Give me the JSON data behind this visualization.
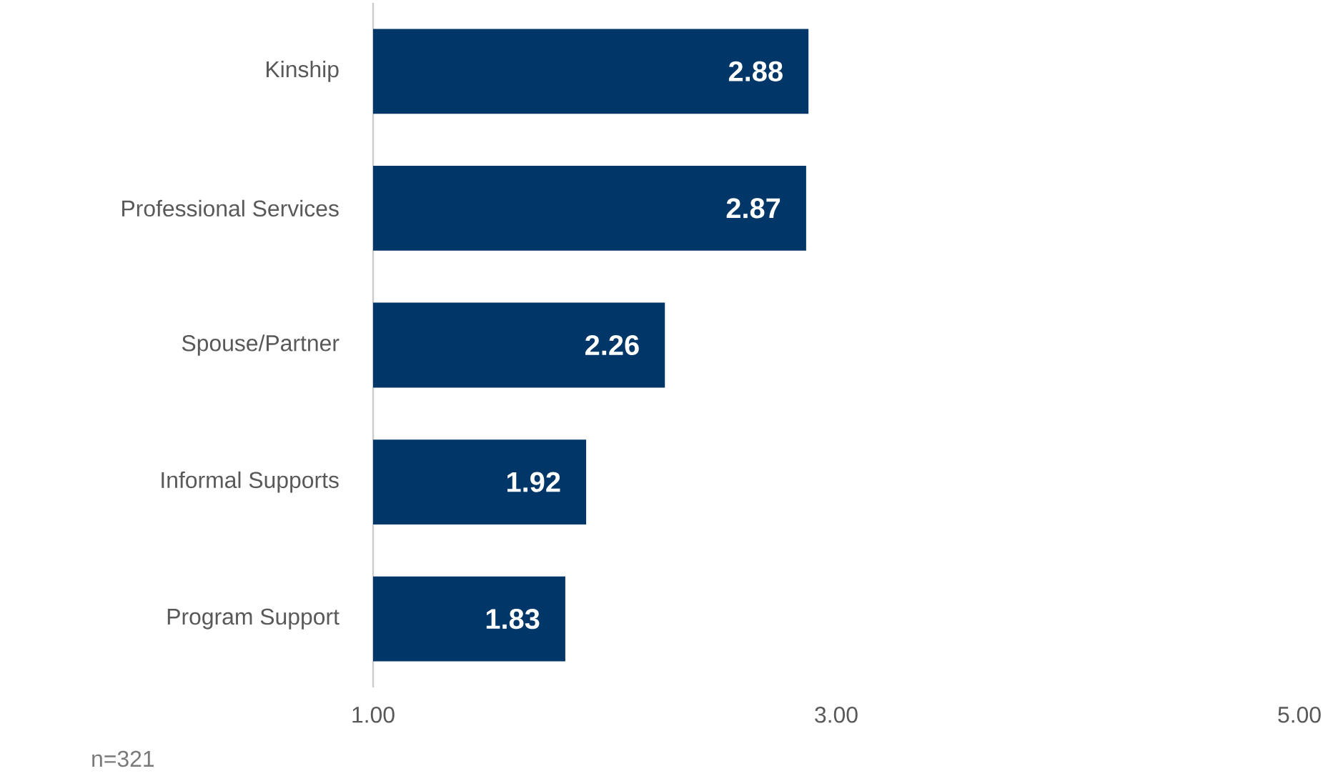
{
  "chart_data": {
    "type": "bar",
    "orientation": "horizontal",
    "categories": [
      "Kinship",
      "Professional Services",
      "Spouse/Partner",
      "Informal Supports",
      "Program Support"
    ],
    "values": [
      2.88,
      2.87,
      2.26,
      1.92,
      1.83
    ],
    "color": "#003768",
    "xlim": [
      1,
      5
    ],
    "xticks": [
      {
        "value": 1,
        "label": "1.00"
      },
      {
        "value": 3,
        "label": "3.00"
      },
      {
        "value": 5,
        "label": "5.00"
      }
    ],
    "data_labels": true,
    "annotations": [
      "n=321"
    ]
  }
}
